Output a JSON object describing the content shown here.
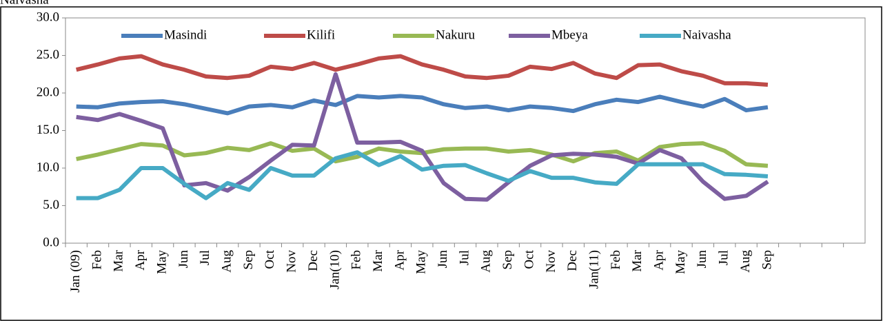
{
  "chart_data": {
    "type": "line",
    "title": "Naivasha",
    "categories": [
      "Jan (09)",
      "Feb",
      "Mar",
      "Apr",
      "May",
      "Jun",
      "Jul",
      "Aug",
      "Sep",
      "Oct",
      "Nov",
      "Dec",
      "Jan(10)",
      "Feb",
      "Mar",
      "Apr",
      "May",
      "Jun",
      "Jul",
      "Aug",
      "Sep",
      "Oct",
      "Nov",
      "Dec",
      "Jan(11)",
      "Feb",
      "Mar",
      "Apr",
      "May",
      "Jun",
      "Jul",
      "Aug",
      "Sep",
      null,
      null,
      null,
      null
    ],
    "series": [
      {
        "name": "Masindi",
        "color": "#4a7ebb",
        "values": [
          18.2,
          18.1,
          18.6,
          18.8,
          18.9,
          18.5,
          17.9,
          17.3,
          18.2,
          18.4,
          18.1,
          19.0,
          18.4,
          19.6,
          19.4,
          19.6,
          19.4,
          18.5,
          18.0,
          18.2,
          17.7,
          18.2,
          18.0,
          17.6,
          18.5,
          19.1,
          18.8,
          19.5,
          18.8,
          18.2,
          19.2,
          17.7,
          18.1,
          null,
          null,
          null,
          null
        ]
      },
      {
        "name": "Kilifi",
        "color": "#be4b48",
        "values": [
          23.1,
          23.8,
          24.6,
          24.9,
          23.8,
          23.1,
          22.2,
          22.0,
          22.3,
          23.5,
          23.2,
          24.0,
          23.1,
          23.8,
          24.6,
          24.9,
          23.8,
          23.1,
          22.2,
          22.0,
          22.3,
          23.5,
          23.2,
          24.0,
          22.6,
          22.0,
          23.7,
          23.8,
          22.9,
          22.3,
          21.3,
          21.3,
          21.1,
          null,
          null,
          null,
          null
        ]
      },
      {
        "name": "Nakuru",
        "color": "#98b954",
        "values": [
          11.2,
          11.8,
          12.5,
          13.2,
          13.0,
          11.7,
          12.0,
          12.7,
          12.4,
          13.3,
          12.3,
          12.6,
          10.9,
          11.5,
          12.6,
          12.2,
          12.0,
          12.5,
          12.6,
          12.6,
          12.2,
          12.4,
          11.8,
          10.9,
          12.0,
          12.2,
          11.0,
          12.8,
          13.2,
          13.3,
          12.3,
          10.5,
          10.3,
          null,
          null,
          null,
          null
        ]
      },
      {
        "name": "Mbeya",
        "color": "#7d5fa0",
        "values": [
          16.8,
          16.4,
          17.2,
          16.3,
          15.3,
          7.7,
          8.0,
          7.0,
          8.8,
          11.0,
          13.1,
          13.0,
          22.5,
          13.4,
          13.4,
          13.5,
          12.3,
          8.0,
          5.9,
          5.8,
          8.1,
          10.3,
          11.7,
          11.9,
          11.8,
          11.5,
          10.6,
          12.4,
          11.3,
          8.2,
          5.9,
          6.3,
          8.2,
          null,
          null,
          null,
          null
        ]
      },
      {
        "name": "Naivasha",
        "color": "#46aac5",
        "values": [
          6.0,
          6.0,
          7.1,
          10.0,
          10.0,
          7.9,
          6.0,
          8.0,
          7.1,
          10.0,
          9.0,
          9.0,
          11.3,
          12.1,
          10.4,
          11.6,
          9.8,
          10.3,
          10.4,
          9.3,
          8.3,
          9.6,
          8.7,
          8.7,
          8.1,
          7.9,
          10.5,
          10.5,
          10.5,
          10.5,
          9.2,
          9.1,
          8.9,
          null,
          null,
          null,
          null
        ]
      }
    ],
    "ylim": [
      0,
      30
    ],
    "yticks": [
      {
        "value": 0,
        "label": "0.0"
      },
      {
        "value": 5,
        "label": "5.0"
      },
      {
        "value": 10,
        "label": "10.0"
      },
      {
        "value": 15,
        "label": "15.0"
      },
      {
        "value": 20,
        "label": "20.0"
      },
      {
        "value": 25,
        "label": "25.0"
      },
      {
        "value": 30,
        "label": "30.0"
      }
    ],
    "legend": "top"
  }
}
